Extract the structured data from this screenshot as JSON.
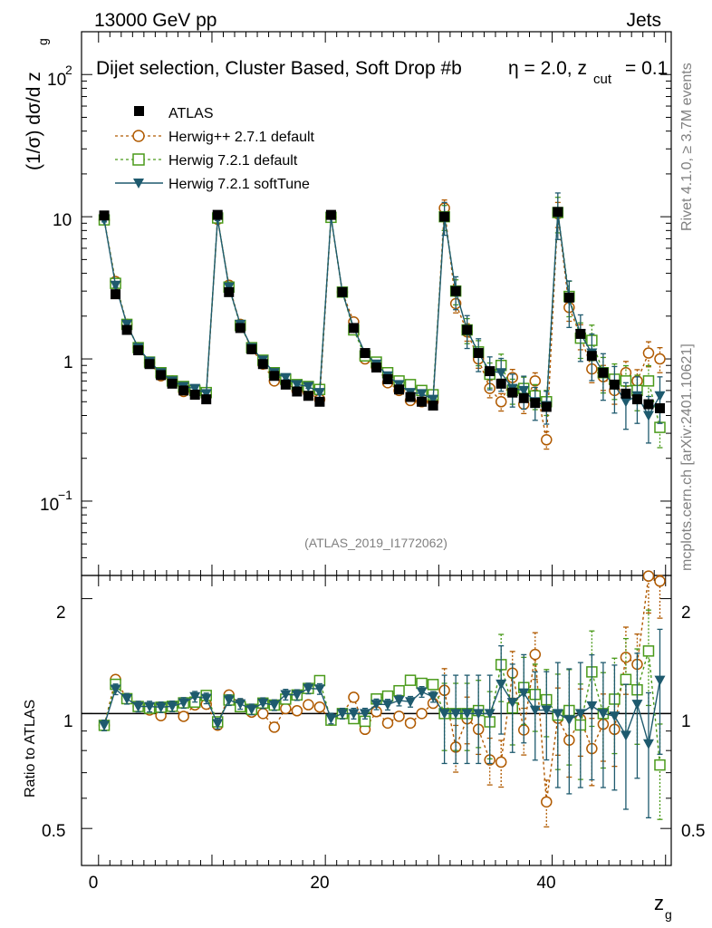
{
  "header": {
    "energy": "13000 GeV pp",
    "category": "Jets",
    "selection": "Dijet selection, Cluster Based, Soft Drop #b",
    "selection_beta": "η = 2.0, z",
    "zcut_sub": "cut",
    "zcut_val": "= 0.1",
    "rivet": "Rivet 4.1.0, ≥ 3.7M events",
    "mcplots": "mcplots.cern.ch [arXiv:2401.10621]",
    "analysis_id": "(ATLAS_2019_I1772062)"
  },
  "legend": [
    {
      "label": "ATLAS",
      "color": "#000000",
      "marker": "square-filled"
    },
    {
      "label": "Herwig++ 2.7.1 default",
      "color": "#b05a00",
      "marker": "circle-open"
    },
    {
      "label": "Herwig 7.2.1 default",
      "color": "#4a9a1a",
      "marker": "square-open"
    },
    {
      "label": "Herwig 7.2.1 softTune",
      "color": "#1e5a6e",
      "marker": "triangle-down-filled"
    }
  ],
  "axes": {
    "top_ylabel": "(1/σ) dσ/d z",
    "top_ylabel_sub": "g",
    "top_ticks": [
      "10",
      "1",
      "10",
      "10"
    ],
    "top_tick_exp": [
      "2",
      "−1"
    ],
    "bottom_ylabel": "Ratio to ATLAS",
    "bottom_ticks": [
      "2",
      "1",
      "0.5"
    ],
    "x_ticks": [
      "0",
      "20",
      "40"
    ],
    "xlabel": "z",
    "xlabel_sub": "g"
  },
  "chart_data": {
    "type": "scatter",
    "title": "Dijet selection, Cluster Based, Soft Drop",
    "xlabel": "z_g",
    "ylabel": "(1/σ) dσ/d z_g",
    "ylog": true,
    "xlim": [
      -1.5,
      50.5
    ],
    "ylim": [
      0.03,
      200
    ],
    "ratio_ylim": [
      0.4,
      2.3
    ],
    "x": [
      0.5,
      1.5,
      2.5,
      3.5,
      4.5,
      5.5,
      6.5,
      7.5,
      8.5,
      9.5,
      10.5,
      11.5,
      12.5,
      13.5,
      14.5,
      15.5,
      16.5,
      17.5,
      18.5,
      19.5,
      20.5,
      21.5,
      22.5,
      23.5,
      24.5,
      25.5,
      26.5,
      27.5,
      28.5,
      29.5,
      30.5,
      31.5,
      32.5,
      33.5,
      34.5,
      35.5,
      36.5,
      37.5,
      38.5,
      39.5,
      40.5,
      41.5,
      42.5,
      43.5,
      44.5,
      45.5,
      46.5,
      47.5,
      48.5,
      49.5
    ],
    "series": [
      {
        "name": "ATLAS",
        "values": [
          10.2,
          2.85,
          1.6,
          1.15,
          0.92,
          0.77,
          0.67,
          0.6,
          0.56,
          0.52,
          10.3,
          2.95,
          1.65,
          1.17,
          0.92,
          0.76,
          0.66,
          0.59,
          0.55,
          0.5,
          10.3,
          2.95,
          1.65,
          1.1,
          0.87,
          0.72,
          0.61,
          0.54,
          0.5,
          0.47,
          10.0,
          3.0,
          1.6,
          1.1,
          0.82,
          0.67,
          0.58,
          0.53,
          0.49,
          0.46,
          10.8,
          2.7,
          1.5,
          1.05,
          0.8,
          0.66,
          0.57,
          0.52,
          0.48,
          0.45
        ]
      },
      {
        "name": "Herwig++ 2.7.1 default",
        "values": [
          9.5,
          3.5,
          1.75,
          1.2,
          0.94,
          0.76,
          0.7,
          0.59,
          0.59,
          0.55,
          9.6,
          3.3,
          1.75,
          1.18,
          0.92,
          0.7,
          0.68,
          0.6,
          0.58,
          0.52,
          9.9,
          2.95,
          1.82,
          1.0,
          0.88,
          0.68,
          0.6,
          0.51,
          0.5,
          0.5,
          11.5,
          2.45,
          1.55,
          1.0,
          0.62,
          0.5,
          0.74,
          0.48,
          0.7,
          0.27,
          10.5,
          2.3,
          1.45,
          0.85,
          0.75,
          0.6,
          0.8,
          0.7,
          1.1,
          1.0
        ]
      },
      {
        "name": "Herwig 7.2.1 default",
        "values": [
          9.5,
          3.4,
          1.75,
          1.2,
          0.95,
          0.8,
          0.7,
          0.64,
          0.6,
          0.58,
          9.8,
          3.2,
          1.72,
          1.2,
          0.98,
          0.8,
          0.72,
          0.66,
          0.64,
          0.61,
          9.9,
          2.95,
          1.6,
          1.05,
          0.95,
          0.8,
          0.7,
          0.66,
          0.6,
          0.56,
          10.0,
          3.0,
          1.6,
          1.12,
          0.78,
          0.9,
          0.6,
          0.62,
          0.55,
          0.5,
          10.7,
          2.75,
          1.4,
          1.35,
          0.8,
          0.72,
          0.7,
          0.6,
          0.7,
          0.33
        ]
      },
      {
        "name": "Herwig 7.2.1 softTune",
        "values": [
          9.5,
          3.3,
          1.75,
          1.2,
          0.96,
          0.8,
          0.7,
          0.64,
          0.62,
          0.57,
          9.7,
          3.2,
          1.75,
          1.2,
          0.98,
          0.8,
          0.74,
          0.66,
          0.64,
          0.58,
          10.0,
          2.95,
          1.65,
          1.1,
          0.92,
          0.76,
          0.66,
          0.58,
          0.57,
          0.52,
          10.0,
          3.0,
          1.6,
          1.1,
          0.82,
          0.8,
          0.62,
          0.6,
          0.5,
          0.47,
          10.8,
          2.6,
          1.5,
          1.1,
          0.8,
          0.65,
          0.5,
          0.55,
          0.4,
          0.55
        ]
      }
    ]
  }
}
